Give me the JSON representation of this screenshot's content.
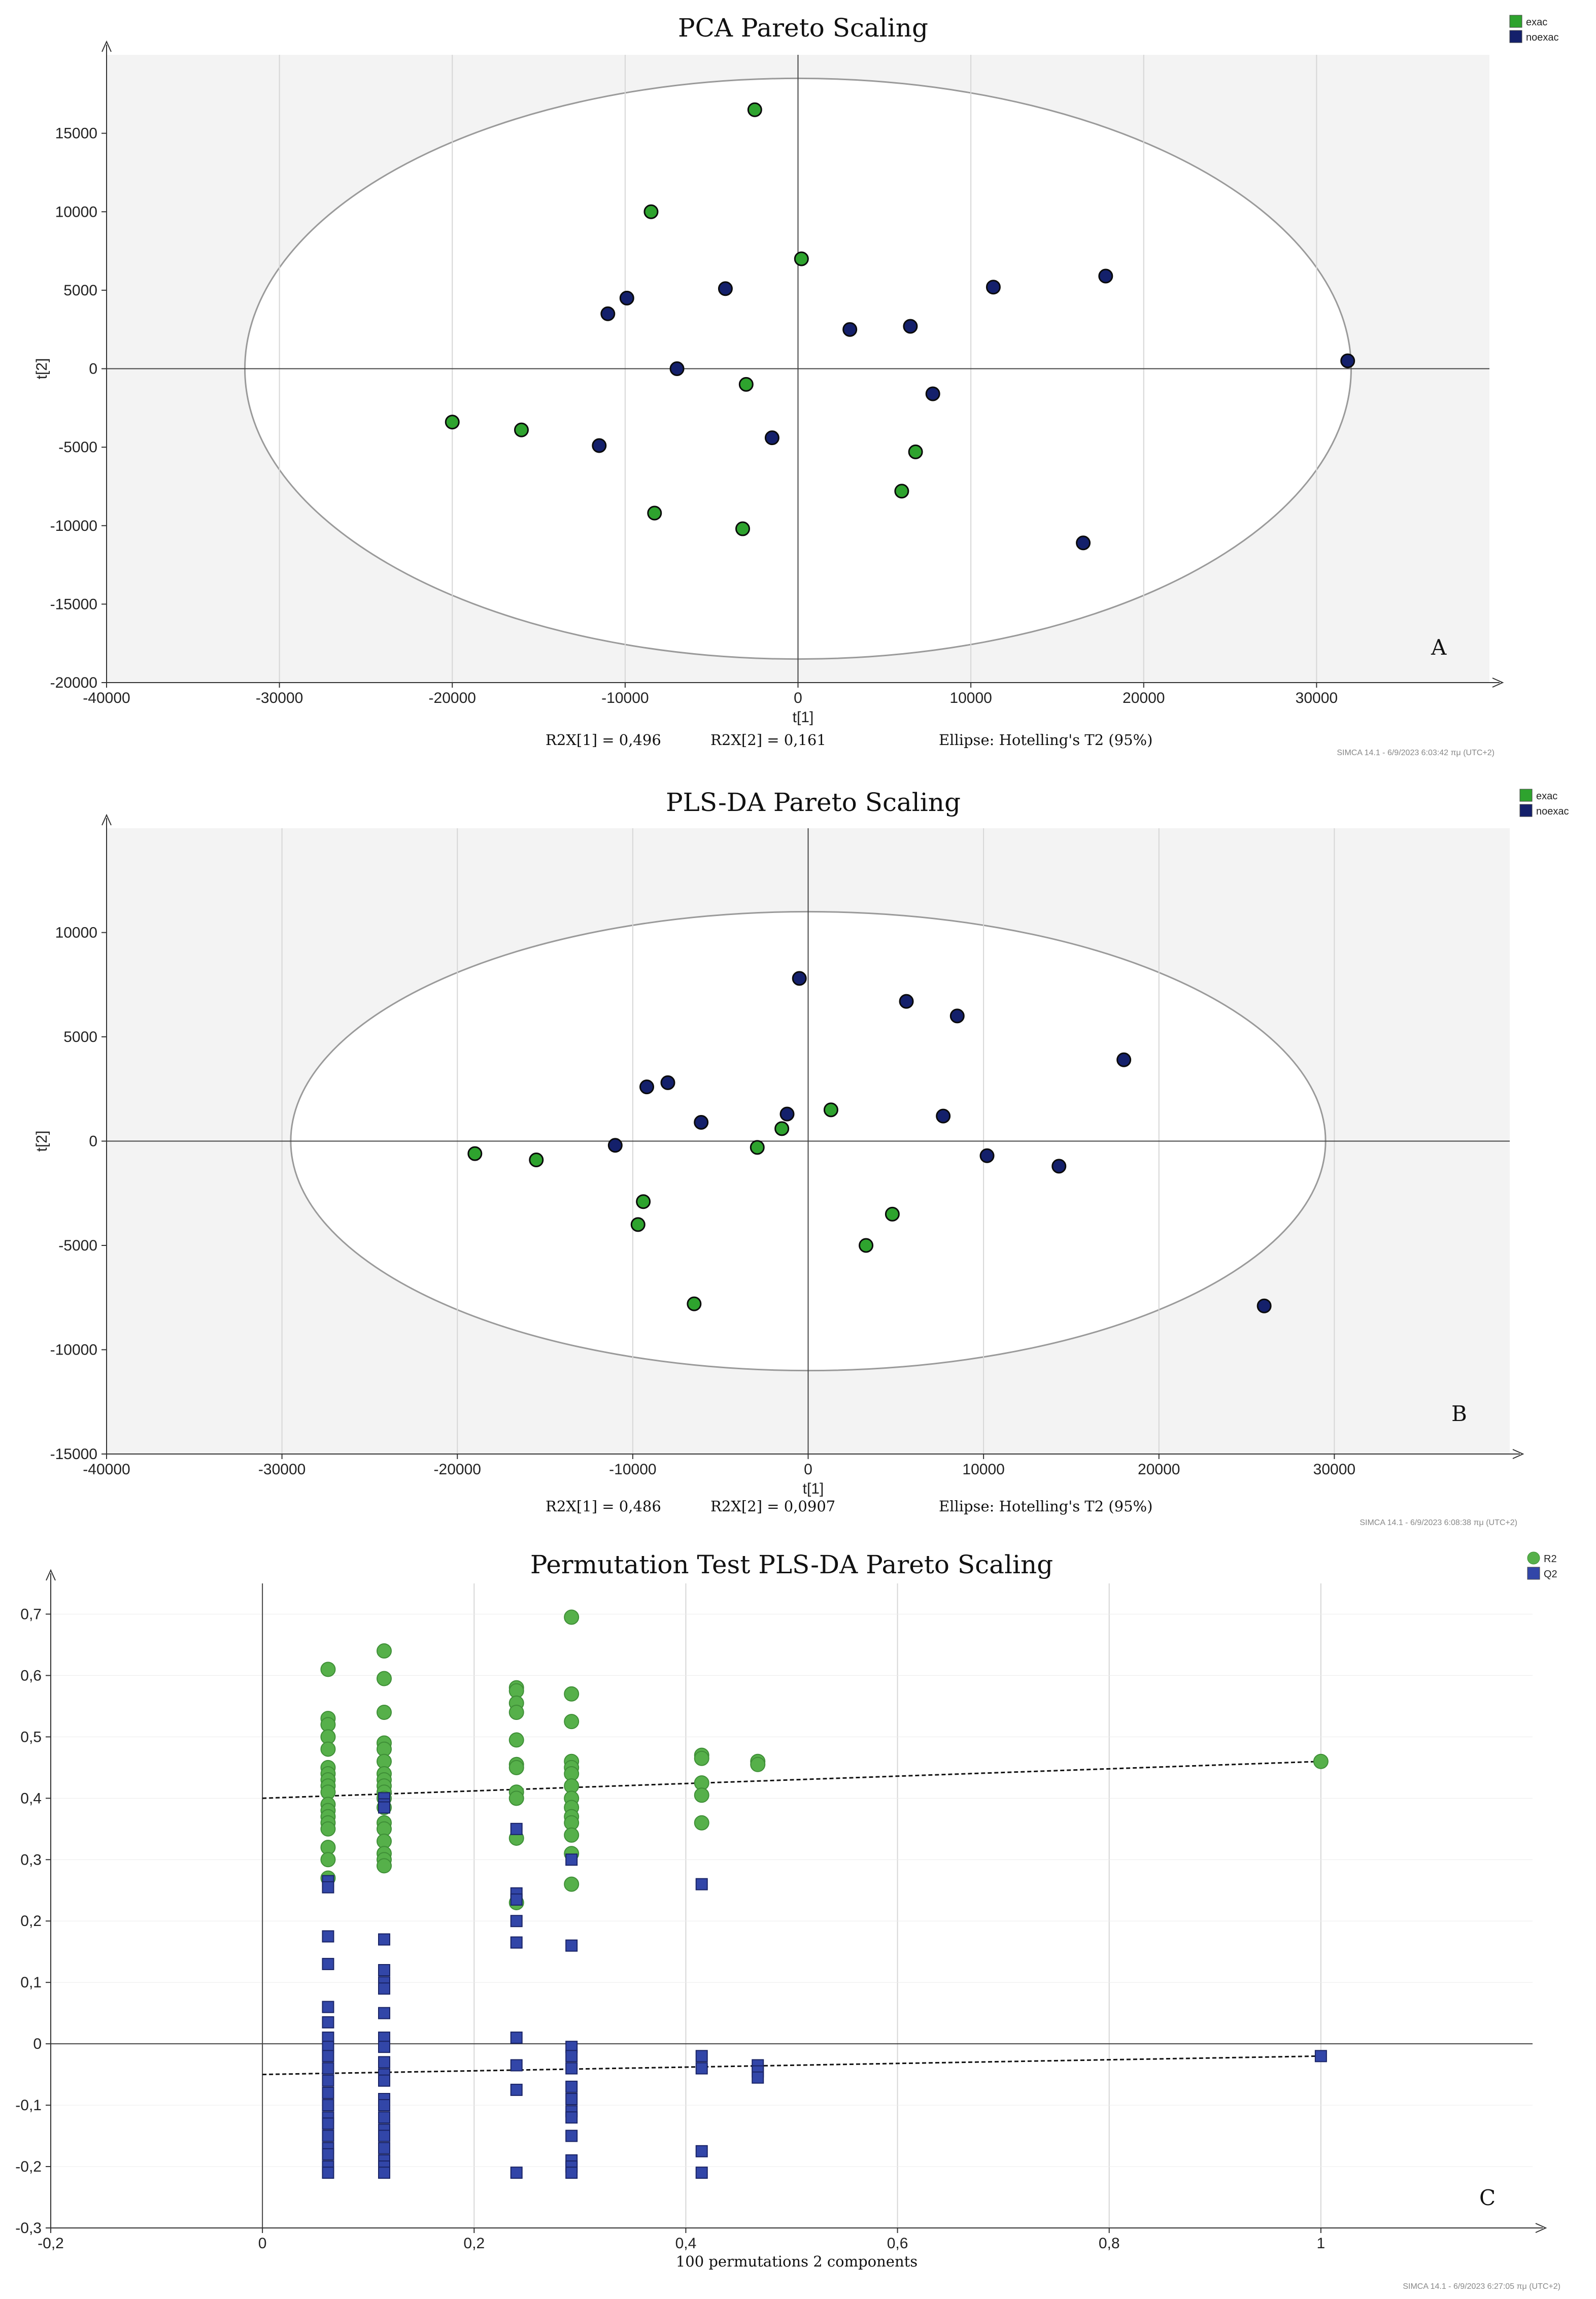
{
  "colors": {
    "exac": "#2ea32e",
    "noexac": "#14206b",
    "R2": "#56b04a",
    "Q2": "#3246a8",
    "plot_bg": "#f3f3f3",
    "ellipse_fill": "#ffffff",
    "ellipse_stroke": "#9a9a9a",
    "grid": "#d6d6d6"
  },
  "chart_data": [
    {
      "type": "scatter",
      "title": "PCA Pareto Scaling",
      "panel_label": "A",
      "xlabel": "t[1]",
      "ylabel": "t[2]",
      "xlim": [
        -40000,
        40000
      ],
      "ylim": [
        -20000,
        20000
      ],
      "xticks": [
        -40000,
        -30000,
        -20000,
        -10000,
        0,
        10000,
        20000,
        30000
      ],
      "yticks": [
        -20000,
        -15000,
        -10000,
        -5000,
        0,
        5000,
        10000,
        15000
      ],
      "footer": {
        "r2x1": "R2X[1] = 0,496",
        "r2x2": "R2X[2] = 0,161",
        "ellipse": "Ellipse: Hotelling's T2 (95%)"
      },
      "stamp": "SIMCA 14.1 - 6/9/2023 6:03:42 πμ (UTC+2)",
      "ellipse": {
        "cx": 0,
        "cy": 0,
        "rx": 32000,
        "ry": 18500
      },
      "grid": true,
      "legend_position": "top-right",
      "series": [
        {
          "name": "exac",
          "marker": "circle",
          "color": "#2ea32e",
          "points": [
            [
              -2500,
              16500
            ],
            [
              -8500,
              10000
            ],
            [
              200,
              7000
            ],
            [
              -20000,
              -3400
            ],
            [
              -16000,
              -3900
            ],
            [
              -3000,
              -1000
            ],
            [
              6800,
              -5300
            ],
            [
              6000,
              -7800
            ],
            [
              -8300,
              -9200
            ],
            [
              -3200,
              -10200
            ]
          ]
        },
        {
          "name": "noexac",
          "marker": "circle",
          "color": "#14206b",
          "points": [
            [
              -11000,
              3500
            ],
            [
              -9900,
              4500
            ],
            [
              -4200,
              5100
            ],
            [
              -7000,
              0
            ],
            [
              -11500,
              -4900
            ],
            [
              -1500,
              -4400
            ],
            [
              3000,
              2500
            ],
            [
              6500,
              2700
            ],
            [
              11300,
              5200
            ],
            [
              17800,
              5900
            ],
            [
              31800,
              500
            ],
            [
              7800,
              -1600
            ],
            [
              16500,
              -11100
            ]
          ]
        }
      ]
    },
    {
      "type": "scatter",
      "title": "PLS-DA Pareto Scaling",
      "panel_label": "B",
      "xlabel": "t[1]",
      "ylabel": "t[2]",
      "xlim": [
        -40000,
        40000
      ],
      "ylim": [
        -15000,
        15000
      ],
      "xticks": [
        -40000,
        -30000,
        -20000,
        -10000,
        0,
        10000,
        20000,
        30000
      ],
      "yticks": [
        -15000,
        -10000,
        -5000,
        0,
        5000,
        10000
      ],
      "footer": {
        "r2x1": "R2X[1] = 0,486",
        "r2x2": "R2X[2] = 0,0907",
        "ellipse": "Ellipse: Hotelling's T2 (95%)"
      },
      "stamp": "SIMCA 14.1 - 6/9/2023 6:08:38 πμ (UTC+2)",
      "ellipse": {
        "cx": 0,
        "cy": 0,
        "rx": 29500,
        "ry": 11000
      },
      "grid": true,
      "legend_position": "top-right",
      "series": [
        {
          "name": "exac",
          "marker": "circle",
          "color": "#2ea32e",
          "points": [
            [
              -19000,
              -600
            ],
            [
              -15500,
              -900
            ],
            [
              -2900,
              -300
            ],
            [
              -1500,
              600
            ],
            [
              1300,
              1500
            ],
            [
              -9400,
              -2900
            ],
            [
              -9700,
              -4000
            ],
            [
              4800,
              -3500
            ],
            [
              3300,
              -5000
            ],
            [
              -6500,
              -7800
            ]
          ]
        },
        {
          "name": "noexac",
          "marker": "circle",
          "color": "#14206b",
          "points": [
            [
              -500,
              7800
            ],
            [
              5600,
              6700
            ],
            [
              8500,
              6000
            ],
            [
              18000,
              3900
            ],
            [
              -9200,
              2600
            ],
            [
              -8000,
              2800
            ],
            [
              -6100,
              900
            ],
            [
              -1200,
              1300
            ],
            [
              -11000,
              -200
            ],
            [
              7700,
              1200
            ],
            [
              10200,
              -700
            ],
            [
              14300,
              -1200
            ],
            [
              26000,
              -7900
            ]
          ]
        }
      ]
    },
    {
      "type": "scatter",
      "title": "Permutation Test PLS-DA Pareto Scaling",
      "panel_label": "C",
      "xlabel": "100 permutations 2 components",
      "ylabel": "",
      "xlim": [
        -0.2,
        1.2
      ],
      "ylim": [
        -0.3,
        0.75
      ],
      "xticks": [
        -0.2,
        0,
        0.2,
        0.4,
        0.6,
        0.8,
        1
      ],
      "xtick_labels": [
        "-0,2",
        "0",
        "0,2",
        "0,4",
        "0,6",
        "0,8",
        "1"
      ],
      "yticks": [
        -0.3,
        -0.2,
        -0.1,
        0,
        0.1,
        0.2,
        0.3,
        0.4,
        0.5,
        0.6,
        0.7
      ],
      "ytick_labels": [
        "-0,3",
        "-0,2",
        "-0,1",
        "0",
        "0,1",
        "0,2",
        "0,3",
        "0,4",
        "0,5",
        "0,6",
        "0,7"
      ],
      "stamp": "SIMCA 14.1 - 6/9/2023 6:27:05 πμ (UTC+2)",
      "grid": true,
      "legend_position": "top-right",
      "regression_lines": [
        {
          "series": "R2",
          "intercept": 0.4,
          "slope": 0.06
        },
        {
          "series": "Q2",
          "intercept": -0.05,
          "slope": 0.03
        }
      ],
      "series": [
        {
          "name": "R2",
          "marker": "circle",
          "color": "#56b04a",
          "points": [
            [
              0.062,
              0.61
            ],
            [
              0.062,
              0.53
            ],
            [
              0.062,
              0.52
            ],
            [
              0.062,
              0.5
            ],
            [
              0.062,
              0.48
            ],
            [
              0.062,
              0.45
            ],
            [
              0.062,
              0.44
            ],
            [
              0.062,
              0.43
            ],
            [
              0.062,
              0.42
            ],
            [
              0.062,
              0.41
            ],
            [
              0.062,
              0.39
            ],
            [
              0.062,
              0.38
            ],
            [
              0.062,
              0.37
            ],
            [
              0.062,
              0.36
            ],
            [
              0.062,
              0.35
            ],
            [
              0.062,
              0.32
            ],
            [
              0.062,
              0.3
            ],
            [
              0.062,
              0.27
            ],
            [
              0.115,
              0.64
            ],
            [
              0.115,
              0.595
            ],
            [
              0.115,
              0.54
            ],
            [
              0.115,
              0.49
            ],
            [
              0.115,
              0.48
            ],
            [
              0.115,
              0.46
            ],
            [
              0.115,
              0.44
            ],
            [
              0.115,
              0.43
            ],
            [
              0.115,
              0.42
            ],
            [
              0.115,
              0.41
            ],
            [
              0.115,
              0.4
            ],
            [
              0.115,
              0.385
            ],
            [
              0.115,
              0.36
            ],
            [
              0.115,
              0.35
            ],
            [
              0.115,
              0.33
            ],
            [
              0.115,
              0.31
            ],
            [
              0.115,
              0.3
            ],
            [
              0.115,
              0.29
            ],
            [
              0.24,
              0.58
            ],
            [
              0.24,
              0.575
            ],
            [
              0.24,
              0.555
            ],
            [
              0.24,
              0.54
            ],
            [
              0.24,
              0.495
            ],
            [
              0.24,
              0.455
            ],
            [
              0.24,
              0.45
            ],
            [
              0.24,
              0.41
            ],
            [
              0.24,
              0.4
            ],
            [
              0.24,
              0.335
            ],
            [
              0.24,
              0.23
            ],
            [
              0.292,
              0.695
            ],
            [
              0.292,
              0.57
            ],
            [
              0.292,
              0.525
            ],
            [
              0.292,
              0.46
            ],
            [
              0.292,
              0.45
            ],
            [
              0.292,
              0.44
            ],
            [
              0.292,
              0.42
            ],
            [
              0.292,
              0.4
            ],
            [
              0.292,
              0.385
            ],
            [
              0.292,
              0.37
            ],
            [
              0.292,
              0.36
            ],
            [
              0.292,
              0.34
            ],
            [
              0.292,
              0.31
            ],
            [
              0.292,
              0.26
            ],
            [
              0.415,
              0.47
            ],
            [
              0.415,
              0.465
            ],
            [
              0.415,
              0.425
            ],
            [
              0.415,
              0.405
            ],
            [
              0.415,
              0.36
            ],
            [
              0.468,
              0.46
            ],
            [
              0.468,
              0.455
            ],
            [
              1.0,
              0.46
            ]
          ]
        },
        {
          "name": "Q2",
          "marker": "square",
          "color": "#3246a8",
          "points": [
            [
              0.062,
              0.265
            ],
            [
              0.062,
              0.255
            ],
            [
              0.062,
              0.175
            ],
            [
              0.062,
              0.13
            ],
            [
              0.062,
              0.06
            ],
            [
              0.062,
              0.035
            ],
            [
              0.062,
              0.01
            ],
            [
              0.062,
              -0.005
            ],
            [
              0.062,
              -0.02
            ],
            [
              0.062,
              -0.04
            ],
            [
              0.062,
              -0.06
            ],
            [
              0.062,
              -0.08
            ],
            [
              0.062,
              -0.1
            ],
            [
              0.062,
              -0.12
            ],
            [
              0.062,
              -0.13
            ],
            [
              0.062,
              -0.15
            ],
            [
              0.062,
              -0.17
            ],
            [
              0.062,
              -0.18
            ],
            [
              0.062,
              -0.2
            ],
            [
              0.062,
              -0.21
            ],
            [
              0.115,
              0.4
            ],
            [
              0.115,
              0.39
            ],
            [
              0.115,
              0.385
            ],
            [
              0.115,
              0.17
            ],
            [
              0.115,
              0.12
            ],
            [
              0.115,
              0.1
            ],
            [
              0.115,
              0.09
            ],
            [
              0.115,
              0.05
            ],
            [
              0.115,
              0.01
            ],
            [
              0.115,
              -0.005
            ],
            [
              0.115,
              -0.03
            ],
            [
              0.115,
              -0.05
            ],
            [
              0.115,
              -0.06
            ],
            [
              0.115,
              -0.09
            ],
            [
              0.115,
              -0.1
            ],
            [
              0.115,
              -0.12
            ],
            [
              0.115,
              -0.14
            ],
            [
              0.115,
              -0.15
            ],
            [
              0.115,
              -0.17
            ],
            [
              0.115,
              -0.19
            ],
            [
              0.115,
              -0.2
            ],
            [
              0.115,
              -0.21
            ],
            [
              0.24,
              0.35
            ],
            [
              0.24,
              0.245
            ],
            [
              0.24,
              0.235
            ],
            [
              0.24,
              0.2
            ],
            [
              0.24,
              0.165
            ],
            [
              0.24,
              0.01
            ],
            [
              0.24,
              -0.035
            ],
            [
              0.24,
              -0.075
            ],
            [
              0.24,
              -0.21
            ],
            [
              0.292,
              0.3
            ],
            [
              0.292,
              0.16
            ],
            [
              0.292,
              -0.005
            ],
            [
              0.292,
              -0.02
            ],
            [
              0.292,
              -0.04
            ],
            [
              0.292,
              -0.07
            ],
            [
              0.292,
              -0.09
            ],
            [
              0.292,
              -0.11
            ],
            [
              0.292,
              -0.12
            ],
            [
              0.292,
              -0.15
            ],
            [
              0.292,
              -0.19
            ],
            [
              0.292,
              -0.2
            ],
            [
              0.292,
              -0.21
            ],
            [
              0.415,
              0.26
            ],
            [
              0.415,
              -0.02
            ],
            [
              0.415,
              -0.04
            ],
            [
              0.415,
              -0.175
            ],
            [
              0.415,
              -0.21
            ],
            [
              0.468,
              -0.035
            ],
            [
              0.468,
              -0.045
            ],
            [
              0.468,
              -0.055
            ],
            [
              1.0,
              -0.02
            ]
          ]
        }
      ]
    }
  ]
}
